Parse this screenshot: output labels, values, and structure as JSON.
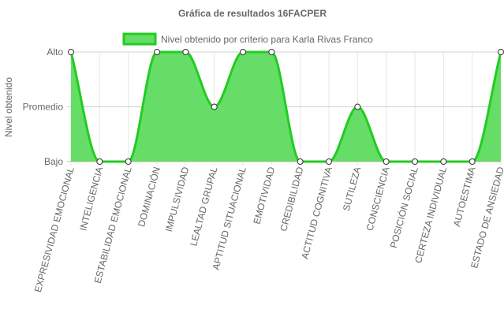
{
  "chart_data": {
    "type": "area",
    "title": "Gráfica de resultados 16FACPER",
    "ylabel": "Nivel obtenido",
    "xlabel": "",
    "y_levels": [
      "Bajo",
      "Promedio",
      "Alto"
    ],
    "ylim": [
      0,
      2
    ],
    "legend_position": "top",
    "grid": true,
    "categories": [
      "EXPRESIVIDAD EMOCIONAL",
      "INTELIGENCIA",
      "ESTABILIDAD EMOCIONAL",
      "DOMINACIÓN",
      "IMPULSIVIDAD",
      "LEALTAD GRUPAL",
      "APTITUD SITUACIONAL",
      "EMOTIVIDAD",
      "CREDIBILIDAD",
      "ACTITUD COGNITIVA",
      "SUTILEZA",
      "CONSCIENCIA",
      "POSICIÓN SOCIAL",
      "CERTEZA INDIVIDUAL",
      "AUTOESTIMA",
      "ESTADO DE ANSIEDAD"
    ],
    "series": [
      {
        "name": "Nivel obtenido por criterio para Karla Rivas Franco",
        "values": [
          2,
          0,
          0,
          2,
          2,
          1,
          2,
          2,
          0,
          0,
          1,
          0,
          0,
          0,
          0,
          2
        ],
        "fill_color": "#66dd66",
        "line_color": "#22cc22"
      }
    ]
  }
}
